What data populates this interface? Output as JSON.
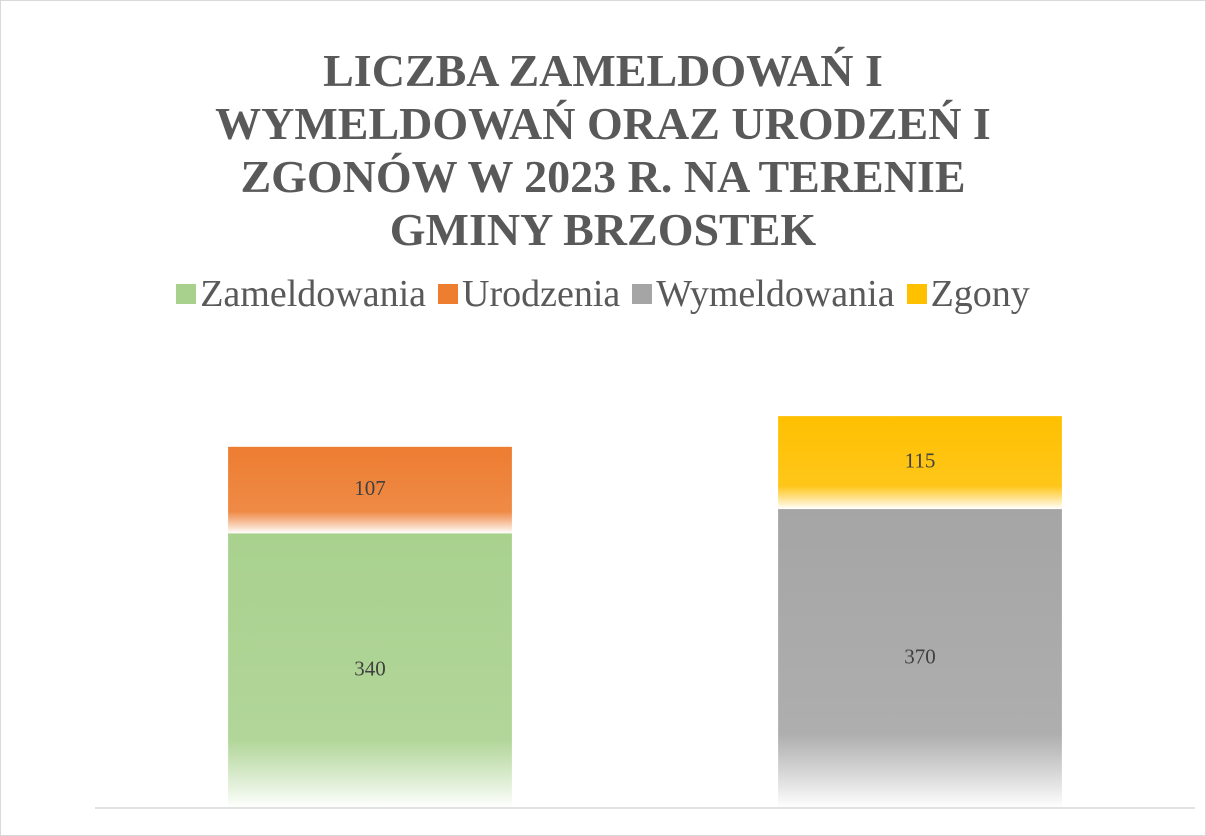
{
  "chart_data": {
    "type": "stacked_bar",
    "title": "LICZBA ZAMELDOWAŃ I WYMELDOWAŃ ORAZ URODZEŃ I ZGONÓW W 2023 R. NA TERENIE GMINY BRZOSTEK",
    "categories": [
      null,
      null
    ],
    "series": [
      {
        "name": "Zameldowania",
        "color": "#a9d18e",
        "values": [
          340,
          null
        ]
      },
      {
        "name": "Urodzenia",
        "color": "#ed7d31",
        "values": [
          107,
          null
        ]
      },
      {
        "name": "Wymeldowania",
        "color": "#a5a5a5",
        "values": [
          null,
          370
        ]
      },
      {
        "name": "Zgony",
        "color": "#ffc000",
        "values": [
          null,
          115
        ]
      }
    ],
    "ylim": [
      0,
      500
    ],
    "legend": "top",
    "data_labels": true
  }
}
